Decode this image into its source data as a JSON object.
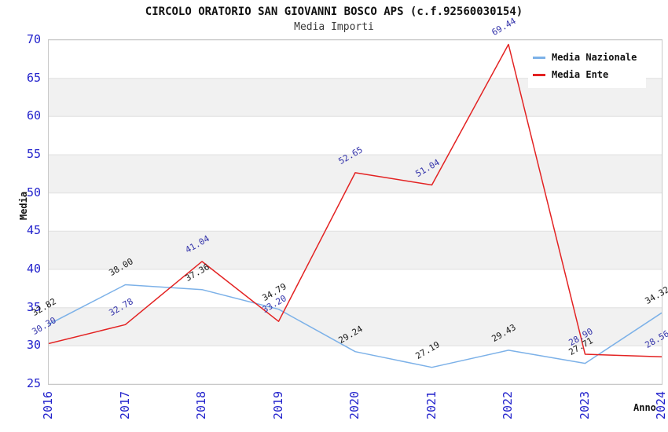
{
  "chart_data": {
    "type": "line",
    "title": "CIRCOLO ORATORIO SAN GIOVANNI BOSCO APS (c.f.92560030154)",
    "subtitle": "Media Importi",
    "xlabel": "Anno",
    "ylabel": "Media",
    "x": [
      "2016",
      "2017",
      "2018",
      "2019",
      "2020",
      "2021",
      "2022",
      "2023",
      "2024"
    ],
    "ylim": [
      25,
      70
    ],
    "ytick_step": 5,
    "yticks": [
      25,
      30,
      35,
      40,
      45,
      50,
      55,
      60,
      65,
      70
    ],
    "grid": "horizontal-gridlines-with-alternating-bands",
    "band_color": "#f1f1f1",
    "gridline_color": "#e0e0e0",
    "axis_tick_color": "#2222cc",
    "legend_position": "top-right-inside",
    "series": [
      {
        "name": "Media Nazionale",
        "color": "#7cb1e8",
        "label_color": "#1a1a1a",
        "values": [
          32.82,
          38.0,
          37.36,
          34.79,
          29.24,
          27.19,
          29.43,
          27.71,
          34.32
        ],
        "labels": [
          "32.82",
          "38.00",
          "37.36",
          "34.79",
          "29.24",
          "27.19",
          "29.43",
          "27.71",
          "34.32"
        ]
      },
      {
        "name": "Media Ente",
        "color": "#e32222",
        "label_color": "#3333aa",
        "values": [
          30.3,
          32.78,
          41.04,
          33.2,
          52.65,
          51.04,
          69.44,
          28.9,
          28.56
        ],
        "labels": [
          "30.30",
          "32.78",
          "41.04",
          "33.20",
          "52.65",
          "51.04",
          "69.44",
          "28.90",
          "28.56"
        ]
      }
    ]
  }
}
